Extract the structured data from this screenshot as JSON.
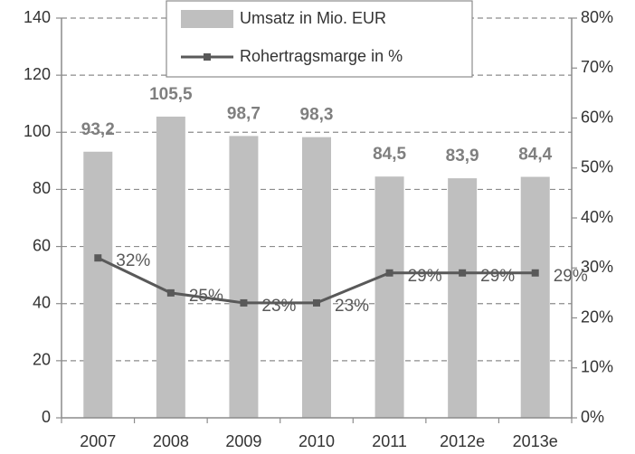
{
  "chart_data": {
    "type": "bar_line",
    "categories": [
      "2007",
      "2008",
      "2009",
      "2010",
      "2011",
      "2012e",
      "2013e"
    ],
    "series": [
      {
        "name": "Umsatz in Mio. EUR",
        "type": "bar",
        "color": "#bfbfbf",
        "values": [
          93.2,
          105.5,
          98.7,
          98.3,
          84.5,
          83.9,
          84.4
        ],
        "value_labels": [
          "93,2",
          "105,5",
          "98,7",
          "98,3",
          "84,5",
          "83,9",
          "84,4"
        ]
      },
      {
        "name": "Rohertragsmarge in %",
        "type": "line",
        "axis": "y2",
        "color": "#595959",
        "values": [
          32,
          25,
          23,
          23,
          29,
          29,
          29
        ],
        "value_labels": [
          "32%",
          "25%",
          "23%",
          "23%",
          "29%",
          "29%",
          "29%"
        ]
      }
    ],
    "ylim": [
      0,
      140
    ],
    "yticks": [
      0,
      20,
      40,
      60,
      80,
      100,
      120,
      140
    ],
    "y2lim": [
      0,
      80
    ],
    "y2ticks": [
      {
        "value": 0,
        "label": "0%"
      },
      {
        "value": 10,
        "label": "10%"
      },
      {
        "value": 20,
        "label": "20%"
      },
      {
        "value": 30,
        "label": "30%"
      },
      {
        "value": 40,
        "label": "40%"
      },
      {
        "value": 50,
        "label": "50%"
      },
      {
        "value": 60,
        "label": "60%"
      },
      {
        "value": 70,
        "label": "70%"
      },
      {
        "value": 80,
        "label": "80%"
      }
    ],
    "grid": true
  }
}
